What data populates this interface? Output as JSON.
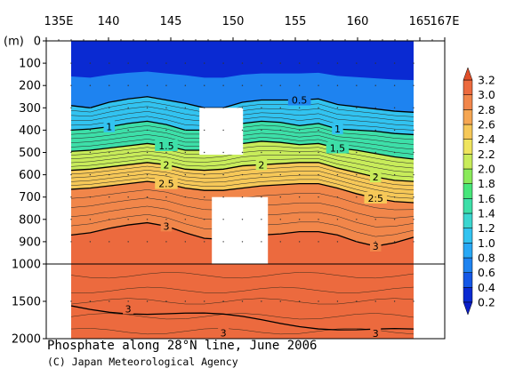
{
  "chart_data": {
    "type": "contour",
    "title": "Phosphate along 28°N line, June 2006",
    "credit": "(C) Japan Meteorological Agency",
    "x_axis": {
      "range": [
        135,
        167
      ],
      "ticks": [
        135,
        140,
        145,
        150,
        155,
        160,
        165,
        167
      ],
      "tick_labels": [
        "135E",
        "140",
        "145",
        "150",
        "155",
        "160",
        "165",
        "167E"
      ]
    },
    "y_axis": {
      "unit_label": "(m)",
      "upper_range": [
        0,
        1000
      ],
      "lower_range": [
        1000,
        2000
      ],
      "upper_ticks": [
        0,
        100,
        200,
        300,
        400,
        500,
        600,
        700,
        800,
        900,
        1000
      ],
      "upper_tick_labels": [
        "0",
        "100",
        "200",
        "300",
        "400",
        "500",
        "600",
        "700",
        "800",
        "900",
        "1000"
      ],
      "lower_ticks": [
        1500,
        2000
      ],
      "lower_tick_labels": [
        "1500",
        "2000"
      ]
    },
    "data_extent_lon": [
      137,
      164.5
    ],
    "colorbar": {
      "levels": [
        0.2,
        0.4,
        0.6,
        0.8,
        1.0,
        1.2,
        1.4,
        1.6,
        1.8,
        2.0,
        2.2,
        2.4,
        2.6,
        2.8,
        3.0,
        3.2
      ],
      "labels": [
        "0.2",
        "0.4",
        "0.6",
        "0.8",
        "1.0",
        "1.2",
        "1.4",
        "1.6",
        "1.8",
        "2.0",
        "2.2",
        "2.4",
        "2.6",
        "2.8",
        "3.0",
        "3.2"
      ],
      "colors": [
        "#0a2ad2",
        "#1457e6",
        "#1e83f0",
        "#28a8f5",
        "#32c3f0",
        "#3bd6d0",
        "#3ddfa8",
        "#47e67a",
        "#8aea5a",
        "#c8ec5a",
        "#efe45e",
        "#f6c858",
        "#f5a652",
        "#f1864a",
        "#ec6a3e"
      ]
    },
    "contour_lines": [
      {
        "level": 0.5,
        "label": "0.5",
        "depths": [
          290,
          300,
          275,
          260,
          250,
          265,
          280,
          300,
          300,
          275,
          265,
          265,
          265,
          260,
          285,
          295,
          305,
          315,
          320
        ]
      },
      {
        "level": 1,
        "label": "1",
        "depths": [
          400,
          395,
          385,
          370,
          360,
          375,
          400,
          400,
          390,
          370,
          360,
          365,
          380,
          370,
          395,
          400,
          405,
          415,
          420
        ]
      },
      {
        "level": 1.5,
        "label": "1.5",
        "depths": [
          495,
          490,
          480,
          470,
          460,
          470,
          490,
          490,
          480,
          460,
          450,
          455,
          465,
          460,
          480,
          490,
          505,
          520,
          530
        ]
      },
      {
        "level": 2,
        "label": "2",
        "depths": [
          580,
          575,
          565,
          555,
          545,
          555,
          575,
          580,
          575,
          560,
          555,
          550,
          545,
          545,
          570,
          590,
          610,
          625,
          630
        ]
      },
      {
        "level": 2.5,
        "label": "2.5",
        "depths": [
          665,
          660,
          650,
          640,
          630,
          640,
          660,
          670,
          670,
          660,
          650,
          645,
          640,
          640,
          660,
          685,
          705,
          720,
          725
        ]
      },
      {
        "level": 3,
        "label": "3",
        "depths": [
          870,
          860,
          840,
          825,
          815,
          830,
          860,
          885,
          890,
          880,
          870,
          865,
          855,
          855,
          870,
          900,
          920,
          905,
          880
        ]
      }
    ],
    "missing_data_boxes": [
      {
        "lon": [
          147.3,
          150.8
        ],
        "depth": [
          300,
          510
        ]
      },
      {
        "lon": [
          148.3,
          152.8
        ],
        "depth": [
          700,
          1000
        ]
      }
    ]
  }
}
